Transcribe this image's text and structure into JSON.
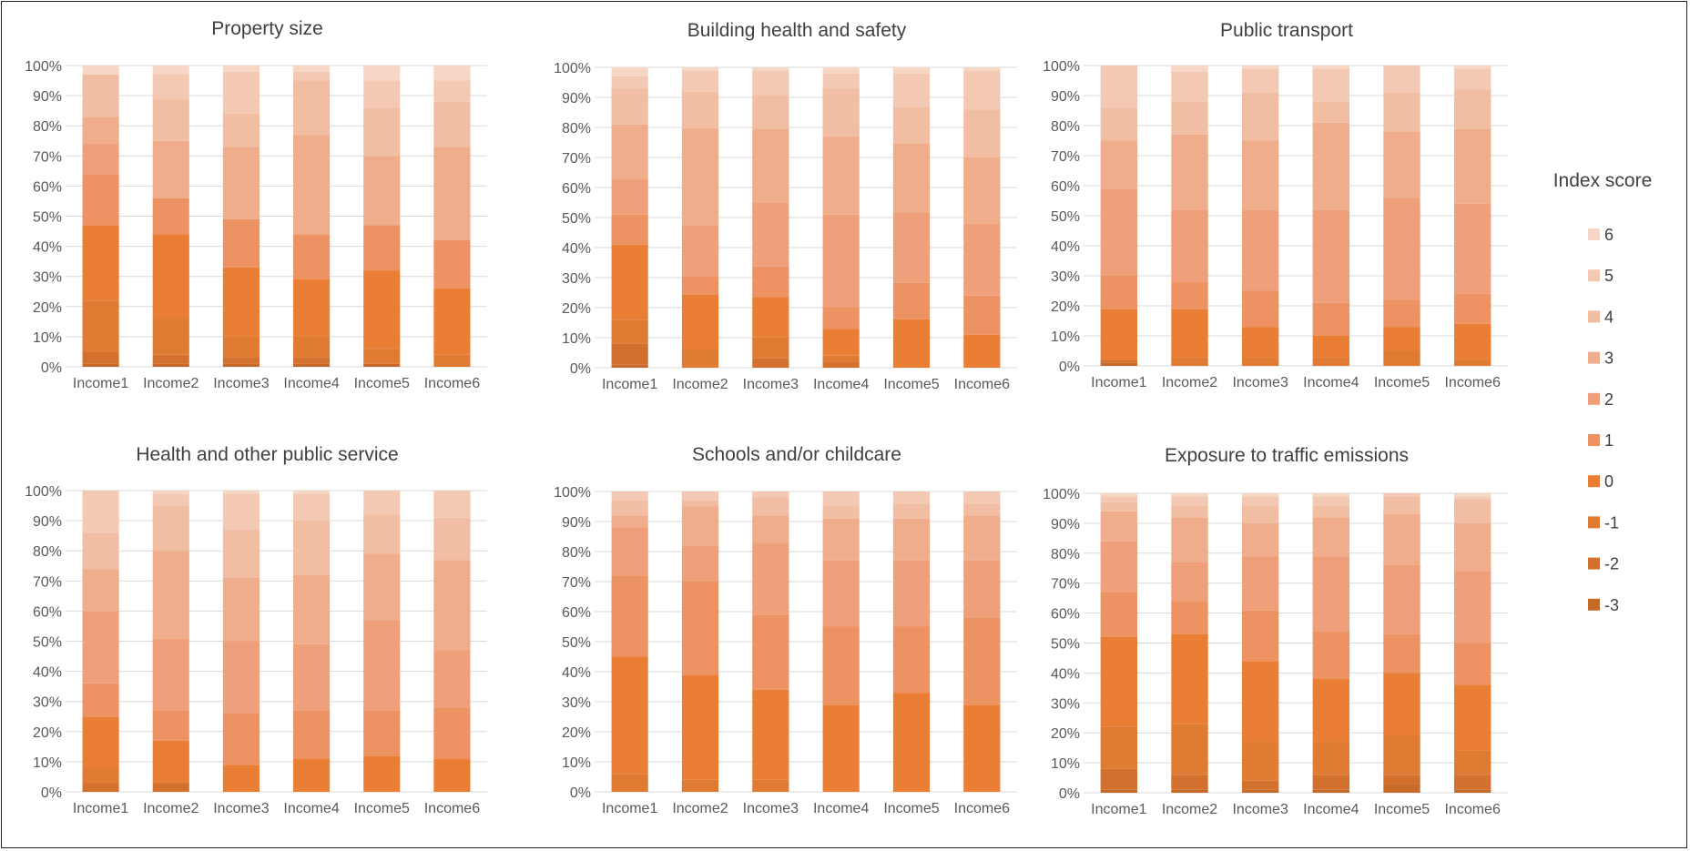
{
  "chart_data": [
    {
      "type": "bar",
      "stacked": "percent",
      "title": "Property size",
      "categories": [
        "Income1",
        "Income2",
        "Income3",
        "Income4",
        "Income5",
        "Income6"
      ],
      "yticks": [
        "0%",
        "10%",
        "20%",
        "30%",
        "40%",
        "50%",
        "60%",
        "70%",
        "80%",
        "90%",
        "100%"
      ],
      "ylim": [
        0,
        100
      ],
      "grid": true,
      "series": [
        {
          "name": "-3",
          "values": [
            1,
            1,
            1,
            1,
            1,
            0
          ]
        },
        {
          "name": "-2",
          "values": [
            4,
            3,
            2,
            2,
            0,
            0
          ]
        },
        {
          "name": "-1",
          "values": [
            17,
            12,
            7,
            7,
            5,
            4
          ]
        },
        {
          "name": "0",
          "values": [
            25,
            28,
            23,
            19,
            26,
            22
          ]
        },
        {
          "name": "1",
          "values": [
            17,
            12,
            16,
            15,
            15,
            16
          ]
        },
        {
          "name": "2",
          "values": [
            10,
            0,
            0,
            0,
            0,
            0
          ]
        },
        {
          "name": "3",
          "values": [
            9,
            19,
            24,
            33,
            23,
            31
          ]
        },
        {
          "name": "4",
          "values": [
            14,
            14,
            11,
            18,
            16,
            15
          ]
        },
        {
          "name": "5",
          "values": [
            0,
            8,
            14,
            3,
            9,
            7
          ]
        },
        {
          "name": "6",
          "values": [
            3,
            3,
            2,
            2,
            5,
            5
          ]
        }
      ]
    },
    {
      "type": "bar",
      "stacked": "percent",
      "title": "Building health and safety",
      "categories": [
        "Income1",
        "Income2",
        "Income3",
        "Income4",
        "Income5",
        "Income6"
      ],
      "yticks": [
        "0%",
        "10%",
        "20%",
        "30%",
        "40%",
        "50%",
        "60%",
        "70%",
        "80%",
        "90%",
        "100%"
      ],
      "ylim": [
        0,
        100
      ],
      "grid": true,
      "series": [
        {
          "name": "-3",
          "values": [
            1,
            0,
            0,
            0,
            0,
            0
          ]
        },
        {
          "name": "-2",
          "values": [
            7,
            0,
            3,
            2,
            0,
            0
          ]
        },
        {
          "name": "-1",
          "values": [
            8,
            6,
            7,
            2,
            0,
            0
          ]
        },
        {
          "name": "0",
          "values": [
            25,
            18,
            13,
            9,
            16,
            11
          ]
        },
        {
          "name": "1",
          "values": [
            10,
            6,
            10,
            7,
            12,
            13
          ]
        },
        {
          "name": "2",
          "values": [
            12,
            17,
            21,
            31,
            23,
            24
          ]
        },
        {
          "name": "3",
          "values": [
            18,
            32,
            24,
            26,
            23,
            22
          ]
        },
        {
          "name": "4",
          "values": [
            12,
            12,
            11,
            16,
            12,
            16
          ]
        },
        {
          "name": "5",
          "values": [
            4,
            7,
            8,
            5,
            11,
            13
          ]
        },
        {
          "name": "6",
          "values": [
            3,
            1,
            1,
            2,
            2,
            1
          ]
        }
      ]
    },
    {
      "type": "bar",
      "stacked": "percent",
      "title": "Public transport",
      "categories": [
        "Income1",
        "Income2",
        "Income3",
        "Income4",
        "Income5",
        "Income6"
      ],
      "yticks": [
        "0%",
        "10%",
        "20%",
        "30%",
        "40%",
        "50%",
        "60%",
        "70%",
        "80%",
        "90%",
        "100%"
      ],
      "ylim": [
        0,
        100
      ],
      "grid": true,
      "series": [
        {
          "name": "-3",
          "values": [
            1,
            0,
            0,
            0,
            0,
            0
          ]
        },
        {
          "name": "-2",
          "values": [
            1,
            0,
            0,
            0,
            0,
            0
          ]
        },
        {
          "name": "-1",
          "values": [
            0,
            3,
            3,
            3,
            5,
            2
          ]
        },
        {
          "name": "0",
          "values": [
            17,
            16,
            10,
            7,
            8,
            12
          ]
        },
        {
          "name": "1",
          "values": [
            11,
            9,
            12,
            11,
            9,
            10
          ]
        },
        {
          "name": "2",
          "values": [
            29,
            24,
            27,
            31,
            34,
            30
          ]
        },
        {
          "name": "3",
          "values": [
            16,
            25,
            23,
            29,
            22,
            25
          ]
        },
        {
          "name": "4",
          "values": [
            11,
            11,
            16,
            7,
            13,
            13
          ]
        },
        {
          "name": "5",
          "values": [
            14,
            10,
            8,
            11,
            9,
            7
          ]
        },
        {
          "name": "6",
          "values": [
            0,
            2,
            1,
            1,
            0,
            1
          ]
        }
      ]
    },
    {
      "type": "bar",
      "stacked": "percent",
      "title": "Health and other public service",
      "categories": [
        "Income1",
        "Income2",
        "Income3",
        "Income4",
        "Income5",
        "Income6"
      ],
      "yticks": [
        "0%",
        "10%",
        "20%",
        "30%",
        "40%",
        "50%",
        "60%",
        "70%",
        "80%",
        "90%",
        "100%"
      ],
      "ylim": [
        0,
        100
      ],
      "grid": true,
      "series": [
        {
          "name": "-3",
          "values": [
            0,
            0,
            0,
            0,
            0,
            0
          ]
        },
        {
          "name": "-2",
          "values": [
            3,
            3,
            0,
            0,
            0,
            0
          ]
        },
        {
          "name": "-1",
          "values": [
            5,
            0,
            0,
            0,
            0,
            0
          ]
        },
        {
          "name": "0",
          "values": [
            17,
            14,
            9,
            11,
            12,
            11
          ]
        },
        {
          "name": "1",
          "values": [
            11,
            10,
            17,
            16,
            15,
            17
          ]
        },
        {
          "name": "2",
          "values": [
            24,
            24,
            24,
            22,
            30,
            19
          ]
        },
        {
          "name": "3",
          "values": [
            14,
            29,
            21,
            23,
            22,
            30
          ]
        },
        {
          "name": "4",
          "values": [
            12,
            15,
            16,
            18,
            13,
            14
          ]
        },
        {
          "name": "5",
          "values": [
            14,
            4,
            12,
            9,
            8,
            9
          ]
        },
        {
          "name": "6",
          "values": [
            0,
            1,
            1,
            1,
            0,
            0
          ]
        }
      ]
    },
    {
      "type": "bar",
      "stacked": "percent",
      "title": "Schools and/or childcare",
      "categories": [
        "Income1",
        "Income2",
        "Income3",
        "Income4",
        "Income5",
        "Income6"
      ],
      "yticks": [
        "0%",
        "10%",
        "20%",
        "30%",
        "40%",
        "50%",
        "60%",
        "70%",
        "80%",
        "90%",
        "100%"
      ],
      "ylim": [
        0,
        100
      ],
      "grid": true,
      "series": [
        {
          "name": "-3",
          "values": [
            0,
            0,
            0,
            0,
            0,
            0
          ]
        },
        {
          "name": "-2",
          "values": [
            0,
            0,
            0,
            0,
            0,
            0
          ]
        },
        {
          "name": "-1",
          "values": [
            6,
            4,
            4,
            0,
            0,
            0
          ]
        },
        {
          "name": "0",
          "values": [
            39,
            35,
            30,
            29,
            33,
            29
          ]
        },
        {
          "name": "1",
          "values": [
            27,
            31,
            25,
            26,
            22,
            29
          ]
        },
        {
          "name": "2",
          "values": [
            16,
            12,
            24,
            22,
            22,
            19
          ]
        },
        {
          "name": "3",
          "values": [
            4,
            13,
            9,
            14,
            14,
            15
          ]
        },
        {
          "name": "4",
          "values": [
            5,
            2,
            6,
            4,
            5,
            4
          ]
        },
        {
          "name": "5",
          "values": [
            3,
            3,
            2,
            5,
            4,
            4
          ]
        },
        {
          "name": "6",
          "values": [
            0,
            0,
            0,
            0,
            0,
            0
          ]
        }
      ]
    },
    {
      "type": "bar",
      "stacked": "percent",
      "title": "Exposure to traffic emissions",
      "categories": [
        "Income1",
        "Income2",
        "Income3",
        "Income4",
        "Income5",
        "Income6"
      ],
      "yticks": [
        "0%",
        "10%",
        "20%",
        "30%",
        "40%",
        "50%",
        "60%",
        "70%",
        "80%",
        "90%",
        "100%"
      ],
      "ylim": [
        0,
        100
      ],
      "grid": true,
      "series": [
        {
          "name": "-3",
          "values": [
            1,
            1,
            1,
            1,
            3,
            1
          ]
        },
        {
          "name": "-2",
          "values": [
            7,
            5,
            3,
            5,
            3,
            5
          ]
        },
        {
          "name": "-1",
          "values": [
            14,
            17,
            13,
            11,
            13,
            8
          ]
        },
        {
          "name": "0",
          "values": [
            30,
            30,
            27,
            21,
            21,
            22
          ]
        },
        {
          "name": "1",
          "values": [
            15,
            11,
            17,
            16,
            13,
            14
          ]
        },
        {
          "name": "2",
          "values": [
            17,
            13,
            18,
            25,
            23,
            24
          ]
        },
        {
          "name": "3",
          "values": [
            10,
            15,
            11,
            13,
            17,
            16
          ]
        },
        {
          "name": "4",
          "values": [
            3,
            4,
            6,
            4,
            6,
            8
          ]
        },
        {
          "name": "5",
          "values": [
            2,
            3,
            3,
            3,
            1,
            1
          ]
        },
        {
          "name": "6",
          "values": [
            1,
            1,
            1,
            1,
            0,
            1
          ]
        }
      ]
    }
  ],
  "legend": {
    "title": "Index score",
    "placement": "right",
    "items": [
      {
        "label": "6",
        "color": "#F6D7C6"
      },
      {
        "label": "5",
        "color": "#F3C9B3"
      },
      {
        "label": "4",
        "color": "#F1BEA3"
      },
      {
        "label": "3",
        "color": "#EFAD8C"
      },
      {
        "label": "2",
        "color": "#EFA07A"
      },
      {
        "label": "1",
        "color": "#ED9263"
      },
      {
        "label": "0",
        "color": "#EB7E35"
      },
      {
        "label": "-1",
        "color": "#E07B34"
      },
      {
        "label": "-2",
        "color": "#D4702E"
      },
      {
        "label": "-3",
        "color": "#C66A2A"
      }
    ]
  }
}
